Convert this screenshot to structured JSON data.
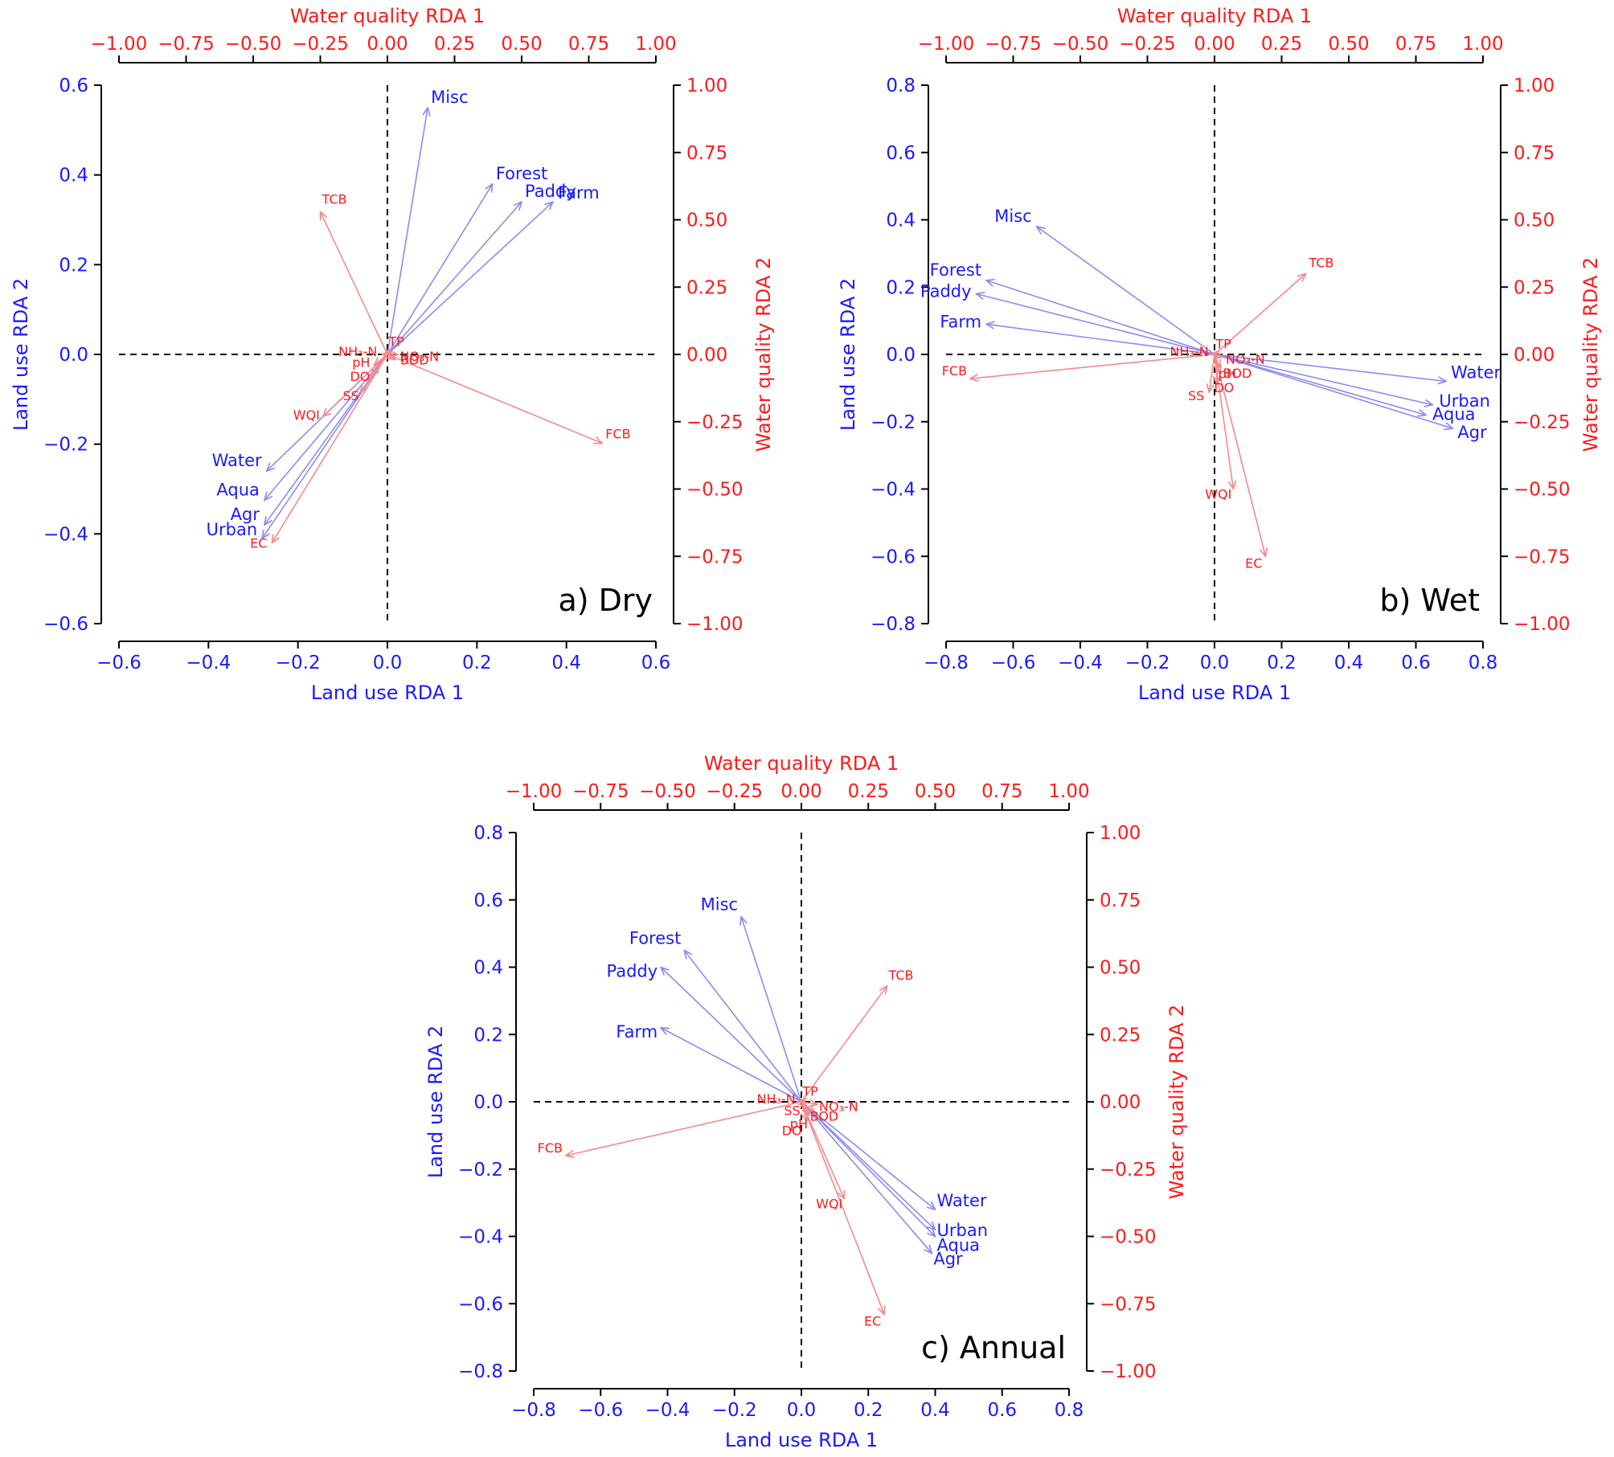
{
  "colors": {
    "land_use": "#1a1aff",
    "water_quality": "#ff1a1a",
    "land_arrow": "#8c8cf2",
    "water_arrow": "#f58a8a",
    "axis": "#000000"
  },
  "chart_data": [
    {
      "type": "scatter",
      "panel_label": "a) Dry",
      "xlabel_bottom": "Land use RDA 1",
      "xlabel_top": "Water quality RDA 1",
      "ylabel_left": "Land use RDA 2",
      "ylabel_right": "Water quality RDA 2",
      "xlim": [
        -0.6,
        0.6
      ],
      "ylim": [
        -0.6,
        0.6
      ],
      "wq_lim": [
        -1.0,
        1.0
      ],
      "x_ticks": [
        "−0.6",
        "−0.4",
        "−0.2",
        "0.0",
        "0.2",
        "0.4",
        "0.6"
      ],
      "y_ticks": [
        "−0.6",
        "−0.4",
        "−0.2",
        "0.0",
        "0.2",
        "0.4",
        "0.6"
      ],
      "wq_ticks": [
        "−1.00",
        "−0.75",
        "−0.50",
        "−0.25",
        "0.00",
        "0.25",
        "0.50",
        "0.75",
        "1.00"
      ],
      "land_use": [
        {
          "label": "Misc",
          "x": 0.09,
          "y": 0.55
        },
        {
          "label": "Forest",
          "x": 0.235,
          "y": 0.38
        },
        {
          "label": "Paddy",
          "x": 0.3,
          "y": 0.34
        },
        {
          "label": "Farm",
          "x": 0.37,
          "y": 0.34
        },
        {
          "label": "Water",
          "x": -0.27,
          "y": -0.26
        },
        {
          "label": "Aqua",
          "x": -0.275,
          "y": -0.325
        },
        {
          "label": "Agr",
          "x": -0.275,
          "y": -0.38
        },
        {
          "label": "Urban",
          "x": -0.28,
          "y": -0.41
        }
      ],
      "water_quality": [
        {
          "label": "TCB",
          "x": -0.25,
          "y": 0.53
        },
        {
          "label": "FCB",
          "x": 0.8,
          "y": -0.33
        },
        {
          "label": "EC",
          "x": -0.43,
          "y": -0.7
        },
        {
          "label": "WQI",
          "x": -0.24,
          "y": -0.23
        },
        {
          "label": "SS",
          "x": -0.1,
          "y": -0.14
        },
        {
          "label": "DO",
          "x": -0.06,
          "y": -0.08
        },
        {
          "label": "pH",
          "x": -0.05,
          "y": -0.04
        },
        {
          "label": "BOD",
          "x": 0.03,
          "y": -0.02
        },
        {
          "label": "NH₃-N",
          "x": -0.02,
          "y": 0.0
        },
        {
          "label": "NO₃-N",
          "x": 0.04,
          "y": 0.0
        },
        {
          "label": "TP",
          "x": 0.01,
          "y": 0.02
        }
      ]
    },
    {
      "type": "scatter",
      "panel_label": "b) Wet",
      "xlabel_bottom": "Land use RDA 1",
      "xlabel_top": "Water quality RDA 1",
      "ylabel_left": "Land use RDA 2",
      "ylabel_right": "Water quality RDA 2",
      "xlim": [
        -0.8,
        0.8
      ],
      "ylim": [
        -0.8,
        0.8
      ],
      "wq_lim": [
        -1.0,
        1.0
      ],
      "x_ticks": [
        "−0.8",
        "−0.6",
        "−0.4",
        "−0.2",
        "0.0",
        "0.2",
        "0.4",
        "0.6",
        "0.8"
      ],
      "y_ticks": [
        "−0.8",
        "−0.6",
        "−0.4",
        "−0.2",
        "0.0",
        "0.2",
        "0.4",
        "0.6",
        "0.8"
      ],
      "wq_ticks": [
        "−1.00",
        "−0.75",
        "−0.50",
        "−0.25",
        "0.00",
        "0.25",
        "0.50",
        "0.75",
        "1.00"
      ],
      "land_use": [
        {
          "label": "Misc",
          "x": -0.53,
          "y": 0.38
        },
        {
          "label": "Forest",
          "x": -0.68,
          "y": 0.22
        },
        {
          "label": "Paddy",
          "x": -0.71,
          "y": 0.18
        },
        {
          "label": "Farm",
          "x": -0.68,
          "y": 0.09
        },
        {
          "label": "Water",
          "x": 0.69,
          "y": -0.08
        },
        {
          "label": "Urban",
          "x": 0.65,
          "y": -0.15
        },
        {
          "label": "Aqua",
          "x": 0.63,
          "y": -0.18
        },
        {
          "label": "Agr",
          "x": 0.71,
          "y": -0.22
        }
      ],
      "water_quality": [
        {
          "label": "TCB",
          "x": 0.34,
          "y": 0.3
        },
        {
          "label": "FCB",
          "x": -0.91,
          "y": -0.09
        },
        {
          "label": "EC",
          "x": 0.19,
          "y": -0.75
        },
        {
          "label": "WQI",
          "x": 0.07,
          "y": -0.5
        },
        {
          "label": "SS",
          "x": -0.02,
          "y": -0.14
        },
        {
          "label": "DO",
          "x": 0.01,
          "y": -0.11
        },
        {
          "label": "pH",
          "x": 0.02,
          "y": -0.07
        },
        {
          "label": "BOD",
          "x": 0.02,
          "y": -0.05
        },
        {
          "label": "NH₃-N",
          "x": -0.01,
          "y": 0.0
        },
        {
          "label": "NO₃-N",
          "x": 0.03,
          "y": -0.01
        },
        {
          "label": "TP",
          "x": 0.01,
          "y": 0.01
        }
      ]
    },
    {
      "type": "scatter",
      "panel_label": "c) Annual",
      "xlabel_bottom": "Land use RDA 1",
      "xlabel_top": "Water quality RDA 1",
      "ylabel_left": "Land use RDA 2",
      "ylabel_right": "Water quality RDA 2",
      "xlim": [
        -0.8,
        0.8
      ],
      "ylim": [
        -0.8,
        0.8
      ],
      "wq_lim": [
        -1.0,
        1.0
      ],
      "x_ticks": [
        "−0.8",
        "−0.6",
        "−0.4",
        "−0.2",
        "0.0",
        "0.2",
        "0.4",
        "0.6",
        "0.8"
      ],
      "y_ticks": [
        "−0.8",
        "−0.6",
        "−0.4",
        "−0.2",
        "0.0",
        "0.2",
        "0.4",
        "0.6",
        "0.8"
      ],
      "wq_ticks": [
        "−1.00",
        "−0.75",
        "−0.50",
        "−0.25",
        "0.00",
        "0.25",
        "0.50",
        "0.75",
        "1.00"
      ],
      "land_use": [
        {
          "label": "Misc",
          "x": -0.18,
          "y": 0.55
        },
        {
          "label": "Forest",
          "x": -0.35,
          "y": 0.45
        },
        {
          "label": "Paddy",
          "x": -0.42,
          "y": 0.4
        },
        {
          "label": "Farm",
          "x": -0.42,
          "y": 0.22
        },
        {
          "label": "Water",
          "x": 0.4,
          "y": -0.32
        },
        {
          "label": "Urban",
          "x": 0.4,
          "y": -0.38
        },
        {
          "label": "Aqua",
          "x": 0.4,
          "y": -0.4
        },
        {
          "label": "Agr",
          "x": 0.39,
          "y": -0.45
        }
      ],
      "water_quality": [
        {
          "label": "TCB",
          "x": 0.32,
          "y": 0.43
        },
        {
          "label": "FCB",
          "x": -0.88,
          "y": -0.2
        },
        {
          "label": "EC",
          "x": 0.31,
          "y": -0.79
        },
        {
          "label": "WQI",
          "x": 0.16,
          "y": -0.36
        },
        {
          "label": "SS",
          "x": 0.02,
          "y": -0.02
        },
        {
          "label": "DO",
          "x": 0.02,
          "y": -0.07
        },
        {
          "label": "pH",
          "x": 0.03,
          "y": -0.05
        },
        {
          "label": "BOD",
          "x": 0.05,
          "y": -0.04
        },
        {
          "label": "NH₃-N",
          "x": -0.01,
          "y": 0.0
        },
        {
          "label": "NO₃-N",
          "x": 0.06,
          "y": -0.01
        },
        {
          "label": "TP",
          "x": 0.01,
          "y": 0.01
        }
      ]
    }
  ]
}
